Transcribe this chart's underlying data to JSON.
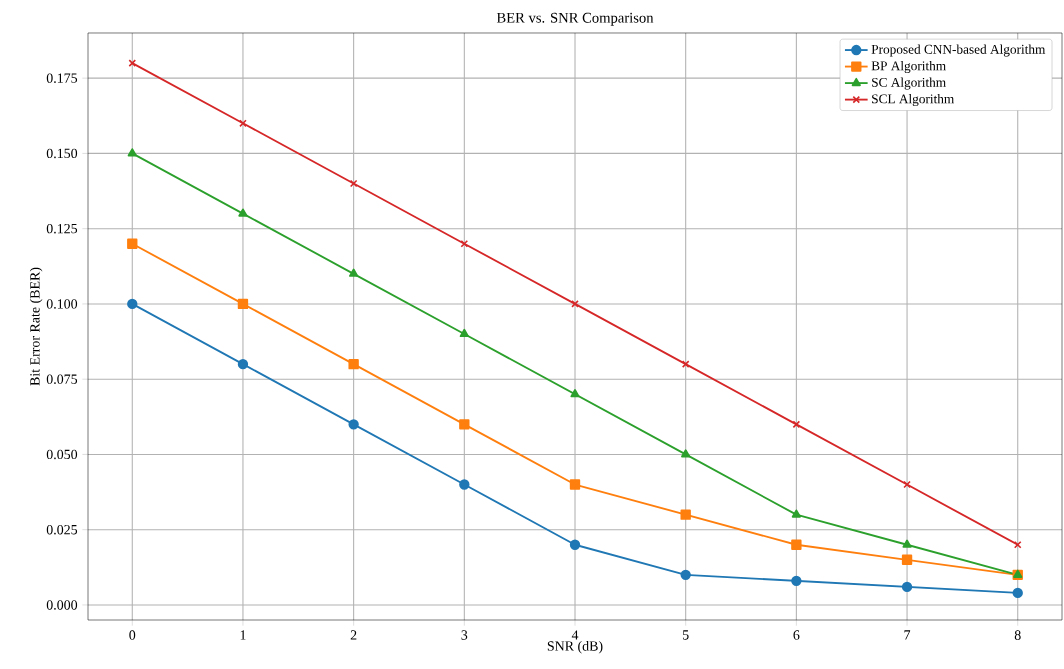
{
  "chart_data": {
    "type": "line",
    "title": "BER vs. SNR Comparison",
    "xlabel": "SNR (dB)",
    "ylabel": "Bit Error Rate (BER)",
    "x": [
      0,
      1,
      2,
      3,
      4,
      5,
      6,
      7,
      8
    ],
    "series": [
      {
        "name": "Proposed CNN-based Algorithm",
        "color": "#1f77b4",
        "marker": "circle",
        "values": [
          0.1,
          0.08,
          0.06,
          0.04,
          0.02,
          0.01,
          0.008,
          0.006,
          0.004
        ]
      },
      {
        "name": "BP Algorithm",
        "color": "#ff7f0e",
        "marker": "square",
        "values": [
          0.12,
          0.1,
          0.08,
          0.06,
          0.04,
          0.03,
          0.02,
          0.015,
          0.01
        ]
      },
      {
        "name": "SC Algorithm",
        "color": "#2ca02c",
        "marker": "triangle",
        "values": [
          0.15,
          0.13,
          0.11,
          0.09,
          0.07,
          0.05,
          0.03,
          0.02,
          0.01
        ]
      },
      {
        "name": "SCL Algorithm",
        "color": "#d62728",
        "marker": "cross",
        "values": [
          0.18,
          0.16,
          0.14,
          0.12,
          0.1,
          0.08,
          0.06,
          0.04,
          0.02
        ]
      }
    ],
    "xlim": [
      -0.4,
      8.4
    ],
    "ylim": [
      -0.005,
      0.19
    ],
    "xticks": [
      0,
      1,
      2,
      3,
      4,
      5,
      6,
      7,
      8
    ],
    "yticks": [
      {
        "value": 0,
        "label": "0.000"
      },
      {
        "value": 0.025,
        "label": "0.025"
      },
      {
        "value": 0.05,
        "label": "0.050"
      },
      {
        "value": 0.075,
        "label": "0.075"
      },
      {
        "value": 0.1,
        "label": "0.100"
      },
      {
        "value": 0.125,
        "label": "0.125"
      },
      {
        "value": 0.15,
        "label": "0.150"
      },
      {
        "value": 0.175,
        "label": "0.175"
      }
    ],
    "grid": true,
    "legend": "top right",
    "line_style": "solid"
  }
}
